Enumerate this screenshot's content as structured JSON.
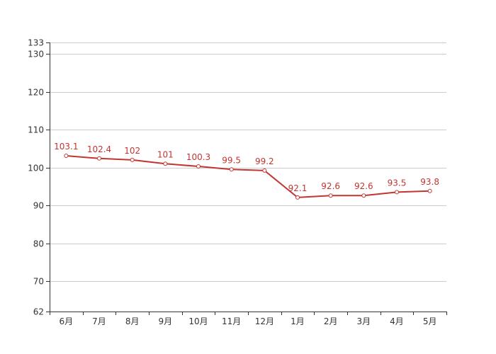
{
  "chart_data": {
    "type": "line",
    "title": "",
    "xlabel": "",
    "ylabel": "",
    "categories": [
      "6月",
      "7月",
      "8月",
      "9月",
      "10月",
      "11月",
      "12月",
      "1月",
      "2月",
      "3月",
      "4月",
      "5月"
    ],
    "series": [
      {
        "values": [
          103.1,
          102.4,
          102,
          101,
          100.3,
          99.5,
          99.2,
          92.1,
          92.6,
          92.6,
          93.5,
          93.8
        ],
        "labels": [
          "103.1",
          "102.4",
          "102",
          "101",
          "100.3",
          "99.5",
          "99.2",
          "92.1",
          "92.6",
          "92.6",
          "93.5",
          "93.8"
        ]
      }
    ],
    "ylim": [
      62,
      133
    ],
    "yticks": [
      62,
      70,
      80,
      90,
      100,
      110,
      120,
      130,
      133
    ],
    "ytick_labels": [
      "62",
      "70",
      "80",
      "90",
      "100",
      "110",
      "120",
      "130",
      "133"
    ],
    "grid": true,
    "legend": "none",
    "colors": {
      "line": "#c23531",
      "grid": "#cccccc",
      "axis": "#333333",
      "point_fill": "#ffffff"
    }
  }
}
